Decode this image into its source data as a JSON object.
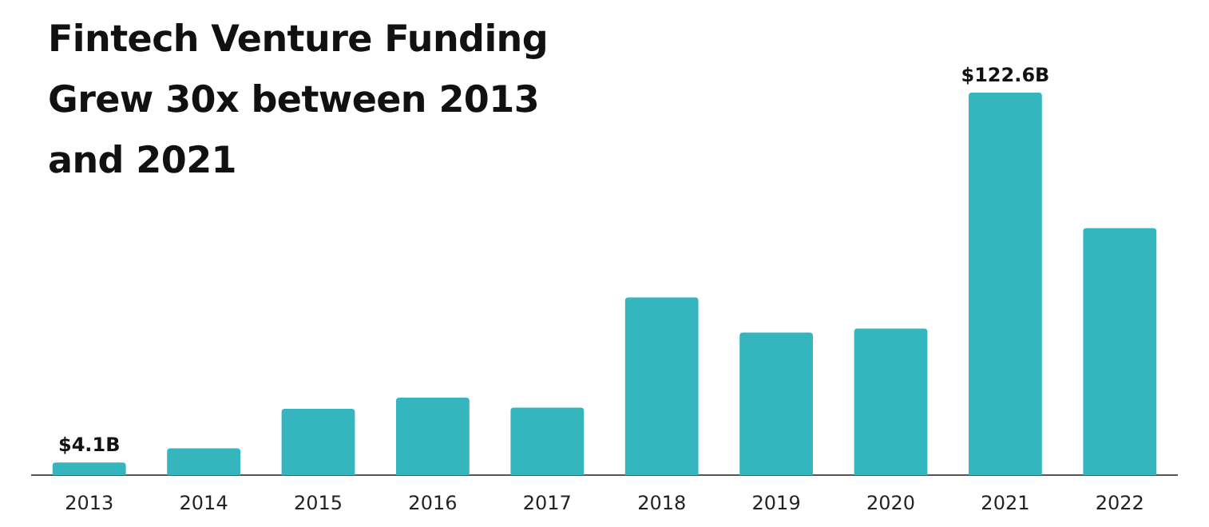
{
  "chart_data": {
    "type": "bar",
    "title": "Fintech Venture Funding Grew 30x between 2013 and 2021",
    "categories": [
      "2013",
      "2014",
      "2015",
      "2016",
      "2017",
      "2018",
      "2019",
      "2020",
      "2021",
      "2022"
    ],
    "values": [
      4.1,
      8.6,
      21.3,
      24.9,
      21.7,
      57.0,
      45.7,
      47.0,
      122.6,
      79.2
    ],
    "value_labels": [
      "$4.1B",
      null,
      null,
      null,
      null,
      null,
      null,
      null,
      "$122.6B",
      null
    ],
    "color": "#35b5be",
    "grid": false,
    "legend": false
  }
}
